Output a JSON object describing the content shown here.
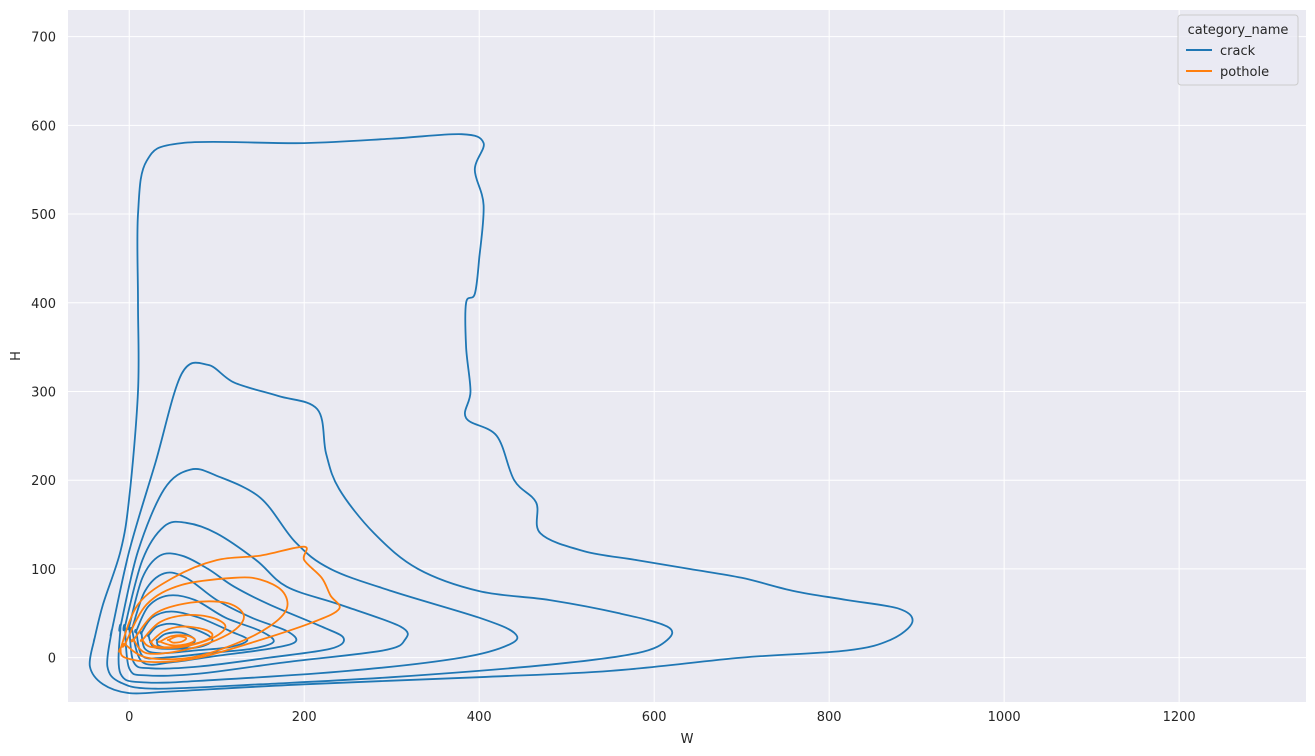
{
  "chart_data": {
    "type": "kde-contour",
    "title": "",
    "xlabel": "W",
    "ylabel": "H",
    "xlim": [
      -70,
      1345
    ],
    "ylim": [
      -50,
      730
    ],
    "xticks": [
      0,
      200,
      400,
      600,
      800,
      1000,
      1200
    ],
    "yticks": [
      0,
      100,
      200,
      300,
      400,
      500,
      600,
      700
    ],
    "grid": true,
    "legend": {
      "title": "category_name",
      "placement": "top-right",
      "entries": [
        "crack",
        "pothole"
      ]
    },
    "series": [
      {
        "name": "crack",
        "color": "#1f77b4",
        "contours": [
          [
            [
              -40,
              20
            ],
            [
              -30,
              60
            ],
            [
              -10,
              120
            ],
            [
              0,
              180
            ],
            [
              10,
              300
            ],
            [
              10,
              400
            ],
            [
              10,
              500
            ],
            [
              20,
              560
            ],
            [
              60,
              580
            ],
            [
              200,
              580
            ],
            [
              300,
              585
            ],
            [
              380,
              590
            ],
            [
              405,
              580
            ],
            [
              395,
              550
            ],
            [
              405,
              510
            ],
            [
              400,
              450
            ],
            [
              395,
              410
            ],
            [
              385,
              400
            ],
            [
              385,
              350
            ],
            [
              390,
              300
            ],
            [
              385,
              270
            ],
            [
              420,
              250
            ],
            [
              440,
              200
            ],
            [
              465,
              175
            ],
            [
              470,
              140
            ],
            [
              520,
              120
            ],
            [
              580,
              110
            ],
            [
              640,
              100
            ],
            [
              700,
              90
            ],
            [
              760,
              75
            ],
            [
              820,
              65
            ],
            [
              880,
              55
            ],
            [
              895,
              40
            ],
            [
              870,
              20
            ],
            [
              820,
              8
            ],
            [
              700,
              0
            ],
            [
              550,
              -15
            ],
            [
              400,
              -22
            ],
            [
              200,
              -30
            ],
            [
              50,
              -38
            ],
            [
              0,
              -40
            ],
            [
              -30,
              -30
            ],
            [
              -45,
              -10
            ],
            [
              -40,
              20
            ]
          ],
          [
            [
              -20,
              30
            ],
            [
              0,
              120
            ],
            [
              30,
              220
            ],
            [
              60,
              320
            ],
            [
              90,
              330
            ],
            [
              120,
              310
            ],
            [
              170,
              295
            ],
            [
              215,
              280
            ],
            [
              225,
              230
            ],
            [
              240,
              190
            ],
            [
              280,
              140
            ],
            [
              330,
              100
            ],
            [
              400,
              75
            ],
            [
              480,
              65
            ],
            [
              560,
              50
            ],
            [
              615,
              35
            ],
            [
              615,
              20
            ],
            [
              580,
              5
            ],
            [
              480,
              -8
            ],
            [
              300,
              -22
            ],
            [
              150,
              -30
            ],
            [
              30,
              -35
            ],
            [
              -10,
              -28
            ],
            [
              -25,
              -10
            ],
            [
              -20,
              30
            ]
          ],
          [
            [
              -10,
              35
            ],
            [
              10,
              120
            ],
            [
              40,
              190
            ],
            [
              70,
              212
            ],
            [
              100,
              205
            ],
            [
              150,
              180
            ],
            [
              190,
              130
            ],
            [
              230,
              100
            ],
            [
              300,
              75
            ],
            [
              400,
              45
            ],
            [
              440,
              28
            ],
            [
              435,
              15
            ],
            [
              380,
              0
            ],
            [
              250,
              -15
            ],
            [
              100,
              -25
            ],
            [
              20,
              -28
            ],
            [
              -10,
              -18
            ],
            [
              -10,
              35
            ]
          ],
          [
            [
              -5,
              35
            ],
            [
              15,
              110
            ],
            [
              40,
              148
            ],
            [
              65,
              152
            ],
            [
              100,
              140
            ],
            [
              145,
              110
            ],
            [
              180,
              80
            ],
            [
              240,
              60
            ],
            [
              310,
              35
            ],
            [
              315,
              20
            ],
            [
              290,
              8
            ],
            [
              180,
              -5
            ],
            [
              80,
              -18
            ],
            [
              20,
              -20
            ],
            [
              0,
              -12
            ],
            [
              -5,
              35
            ]
          ],
          [
            [
              0,
              35
            ],
            [
              15,
              90
            ],
            [
              35,
              115
            ],
            [
              60,
              115
            ],
            [
              90,
              100
            ],
            [
              120,
              80
            ],
            [
              160,
              60
            ],
            [
              220,
              35
            ],
            [
              245,
              22
            ],
            [
              230,
              10
            ],
            [
              160,
              0
            ],
            [
              80,
              -10
            ],
            [
              25,
              -12
            ],
            [
              5,
              -5
            ],
            [
              0,
              35
            ]
          ],
          [
            [
              3,
              32
            ],
            [
              18,
              75
            ],
            [
              40,
              95
            ],
            [
              65,
              90
            ],
            [
              100,
              65
            ],
            [
              140,
              45
            ],
            [
              180,
              30
            ],
            [
              190,
              18
            ],
            [
              160,
              10
            ],
            [
              100,
              2
            ],
            [
              50,
              -5
            ],
            [
              15,
              -5
            ],
            [
              3,
              32
            ]
          ],
          [
            [
              8,
              30
            ],
            [
              22,
              58
            ],
            [
              45,
              70
            ],
            [
              75,
              65
            ],
            [
              110,
              45
            ],
            [
              150,
              30
            ],
            [
              165,
              18
            ],
            [
              140,
              10
            ],
            [
              90,
              5
            ],
            [
              40,
              0
            ],
            [
              15,
              2
            ],
            [
              8,
              30
            ]
          ],
          [
            [
              14,
              28
            ],
            [
              26,
              45
            ],
            [
              48,
              52
            ],
            [
              80,
              45
            ],
            [
              115,
              30
            ],
            [
              135,
              20
            ],
            [
              115,
              12
            ],
            [
              75,
              8
            ],
            [
              35,
              5
            ],
            [
              18,
              10
            ],
            [
              14,
              28
            ]
          ],
          [
            [
              22,
              25
            ],
            [
              32,
              35
            ],
            [
              50,
              38
            ],
            [
              80,
              30
            ],
            [
              95,
              20
            ],
            [
              80,
              12
            ],
            [
              50,
              10
            ],
            [
              28,
              12
            ],
            [
              22,
              25
            ]
          ],
          [
            [
              32,
              20
            ],
            [
              42,
              27
            ],
            [
              60,
              28
            ],
            [
              75,
              20
            ],
            [
              65,
              12
            ],
            [
              45,
              11
            ],
            [
              33,
              14
            ],
            [
              32,
              20
            ]
          ]
        ]
      },
      {
        "name": "pothole",
        "color": "#ff7f0e",
        "contours": [
          [
            [
              -10,
              10
            ],
            [
              10,
              60
            ],
            [
              50,
              90
            ],
            [
              100,
              110
            ],
            [
              150,
              115
            ],
            [
              200,
              125
            ],
            [
              200,
              110
            ],
            [
              220,
              90
            ],
            [
              230,
              70
            ],
            [
              240,
              55
            ],
            [
              210,
              40
            ],
            [
              150,
              20
            ],
            [
              80,
              0
            ],
            [
              30,
              -5
            ],
            [
              -5,
              0
            ],
            [
              -10,
              10
            ]
          ],
          [
            [
              -5,
              15
            ],
            [
              20,
              60
            ],
            [
              60,
              82
            ],
            [
              120,
              90
            ],
            [
              150,
              88
            ],
            [
              175,
              75
            ],
            [
              180,
              55
            ],
            [
              160,
              35
            ],
            [
              120,
              15
            ],
            [
              70,
              0
            ],
            [
              20,
              0
            ],
            [
              -5,
              15
            ]
          ],
          [
            [
              5,
              20
            ],
            [
              30,
              50
            ],
            [
              70,
              62
            ],
            [
              110,
              62
            ],
            [
              130,
              50
            ],
            [
              125,
              35
            ],
            [
              100,
              20
            ],
            [
              60,
              8
            ],
            [
              20,
              5
            ],
            [
              5,
              20
            ]
          ],
          [
            [
              15,
              20
            ],
            [
              35,
              40
            ],
            [
              65,
              48
            ],
            [
              95,
              45
            ],
            [
              110,
              35
            ],
            [
              95,
              22
            ],
            [
              60,
              12
            ],
            [
              25,
              12
            ],
            [
              15,
              20
            ]
          ],
          [
            [
              25,
              18
            ],
            [
              40,
              30
            ],
            [
              60,
              35
            ],
            [
              85,
              32
            ],
            [
              95,
              25
            ],
            [
              80,
              17
            ],
            [
              50,
              12
            ],
            [
              30,
              13
            ],
            [
              25,
              18
            ]
          ],
          [
            [
              35,
              18
            ],
            [
              48,
              24
            ],
            [
              65,
              25
            ],
            [
              75,
              20
            ],
            [
              65,
              15
            ],
            [
              48,
              14
            ],
            [
              35,
              18
            ]
          ],
          [
            [
              45,
              20
            ],
            [
              55,
              24
            ],
            [
              65,
              22
            ],
            [
              60,
              18
            ],
            [
              50,
              17
            ],
            [
              45,
              20
            ]
          ]
        ]
      }
    ]
  }
}
